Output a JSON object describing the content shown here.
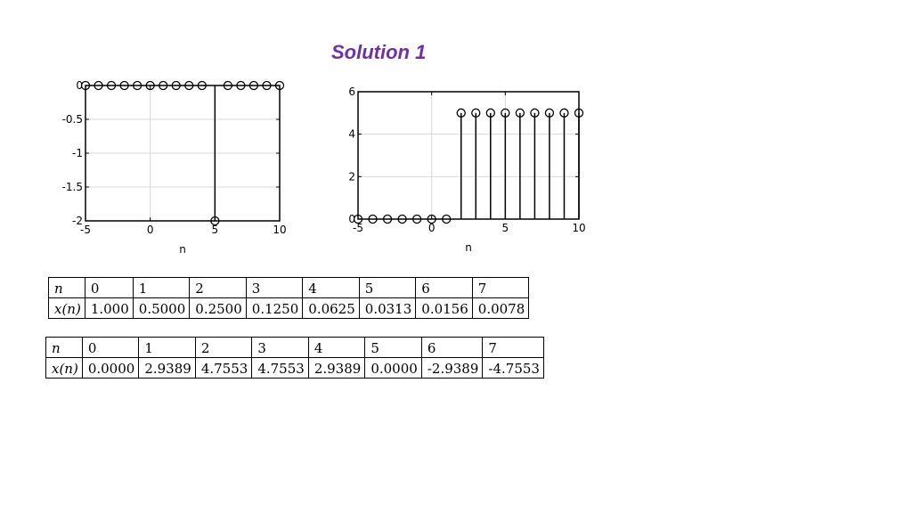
{
  "title": "Solution 1",
  "chart_data": [
    {
      "type": "stem",
      "xlabel": "n",
      "xlim": [
        -5,
        10
      ],
      "ylim": [
        -2,
        0
      ],
      "xticks": [
        -5,
        0,
        5,
        10
      ],
      "yticks": [
        -2,
        -1.5,
        -1,
        -0.5,
        0
      ],
      "ytick_labels": [
        "-2",
        "-1.5",
        "-1",
        "-0.5",
        "0"
      ],
      "grid": true,
      "x": [
        -5,
        -4,
        -3,
        -2,
        -1,
        0,
        1,
        2,
        3,
        4,
        5,
        6,
        7,
        8,
        9,
        10
      ],
      "y": [
        0,
        0,
        0,
        0,
        0,
        0,
        0,
        0,
        0,
        0,
        -2,
        0,
        0,
        0,
        0,
        0
      ]
    },
    {
      "type": "stem",
      "xlabel": "n",
      "xlim": [
        -5,
        10
      ],
      "ylim": [
        0,
        6
      ],
      "xticks": [
        -5,
        0,
        5,
        10
      ],
      "yticks": [
        0,
        2,
        4,
        6
      ],
      "ytick_labels": [
        "0",
        "2",
        "4",
        "6"
      ],
      "grid": true,
      "x": [
        -5,
        -4,
        -3,
        -2,
        -1,
        0,
        1,
        2,
        3,
        4,
        5,
        6,
        7,
        8,
        9,
        10
      ],
      "y": [
        0,
        0,
        0,
        0,
        0,
        0,
        0,
        5,
        5,
        5,
        5,
        5,
        5,
        5,
        5,
        5
      ]
    }
  ],
  "table1": {
    "row_label_n": "n",
    "row_label_x": "x(n)",
    "n": [
      "0",
      "1",
      "2",
      "3",
      "4",
      "5",
      "6",
      "7"
    ],
    "x": [
      "1.000",
      "0.5000",
      "0.2500",
      "0.1250",
      "0.0625",
      "0.0313",
      "0.0156",
      "0.0078"
    ]
  },
  "table2": {
    "row_label_n": "n",
    "row_label_x": "x(n)",
    "n": [
      "0",
      "1",
      "2",
      "3",
      "4",
      "5",
      "6",
      "7"
    ],
    "x": [
      "0.0000",
      "2.9389",
      "4.7553",
      "4.7553",
      "2.9389",
      "0.0000",
      "-2.9389",
      "-4.7553"
    ]
  }
}
